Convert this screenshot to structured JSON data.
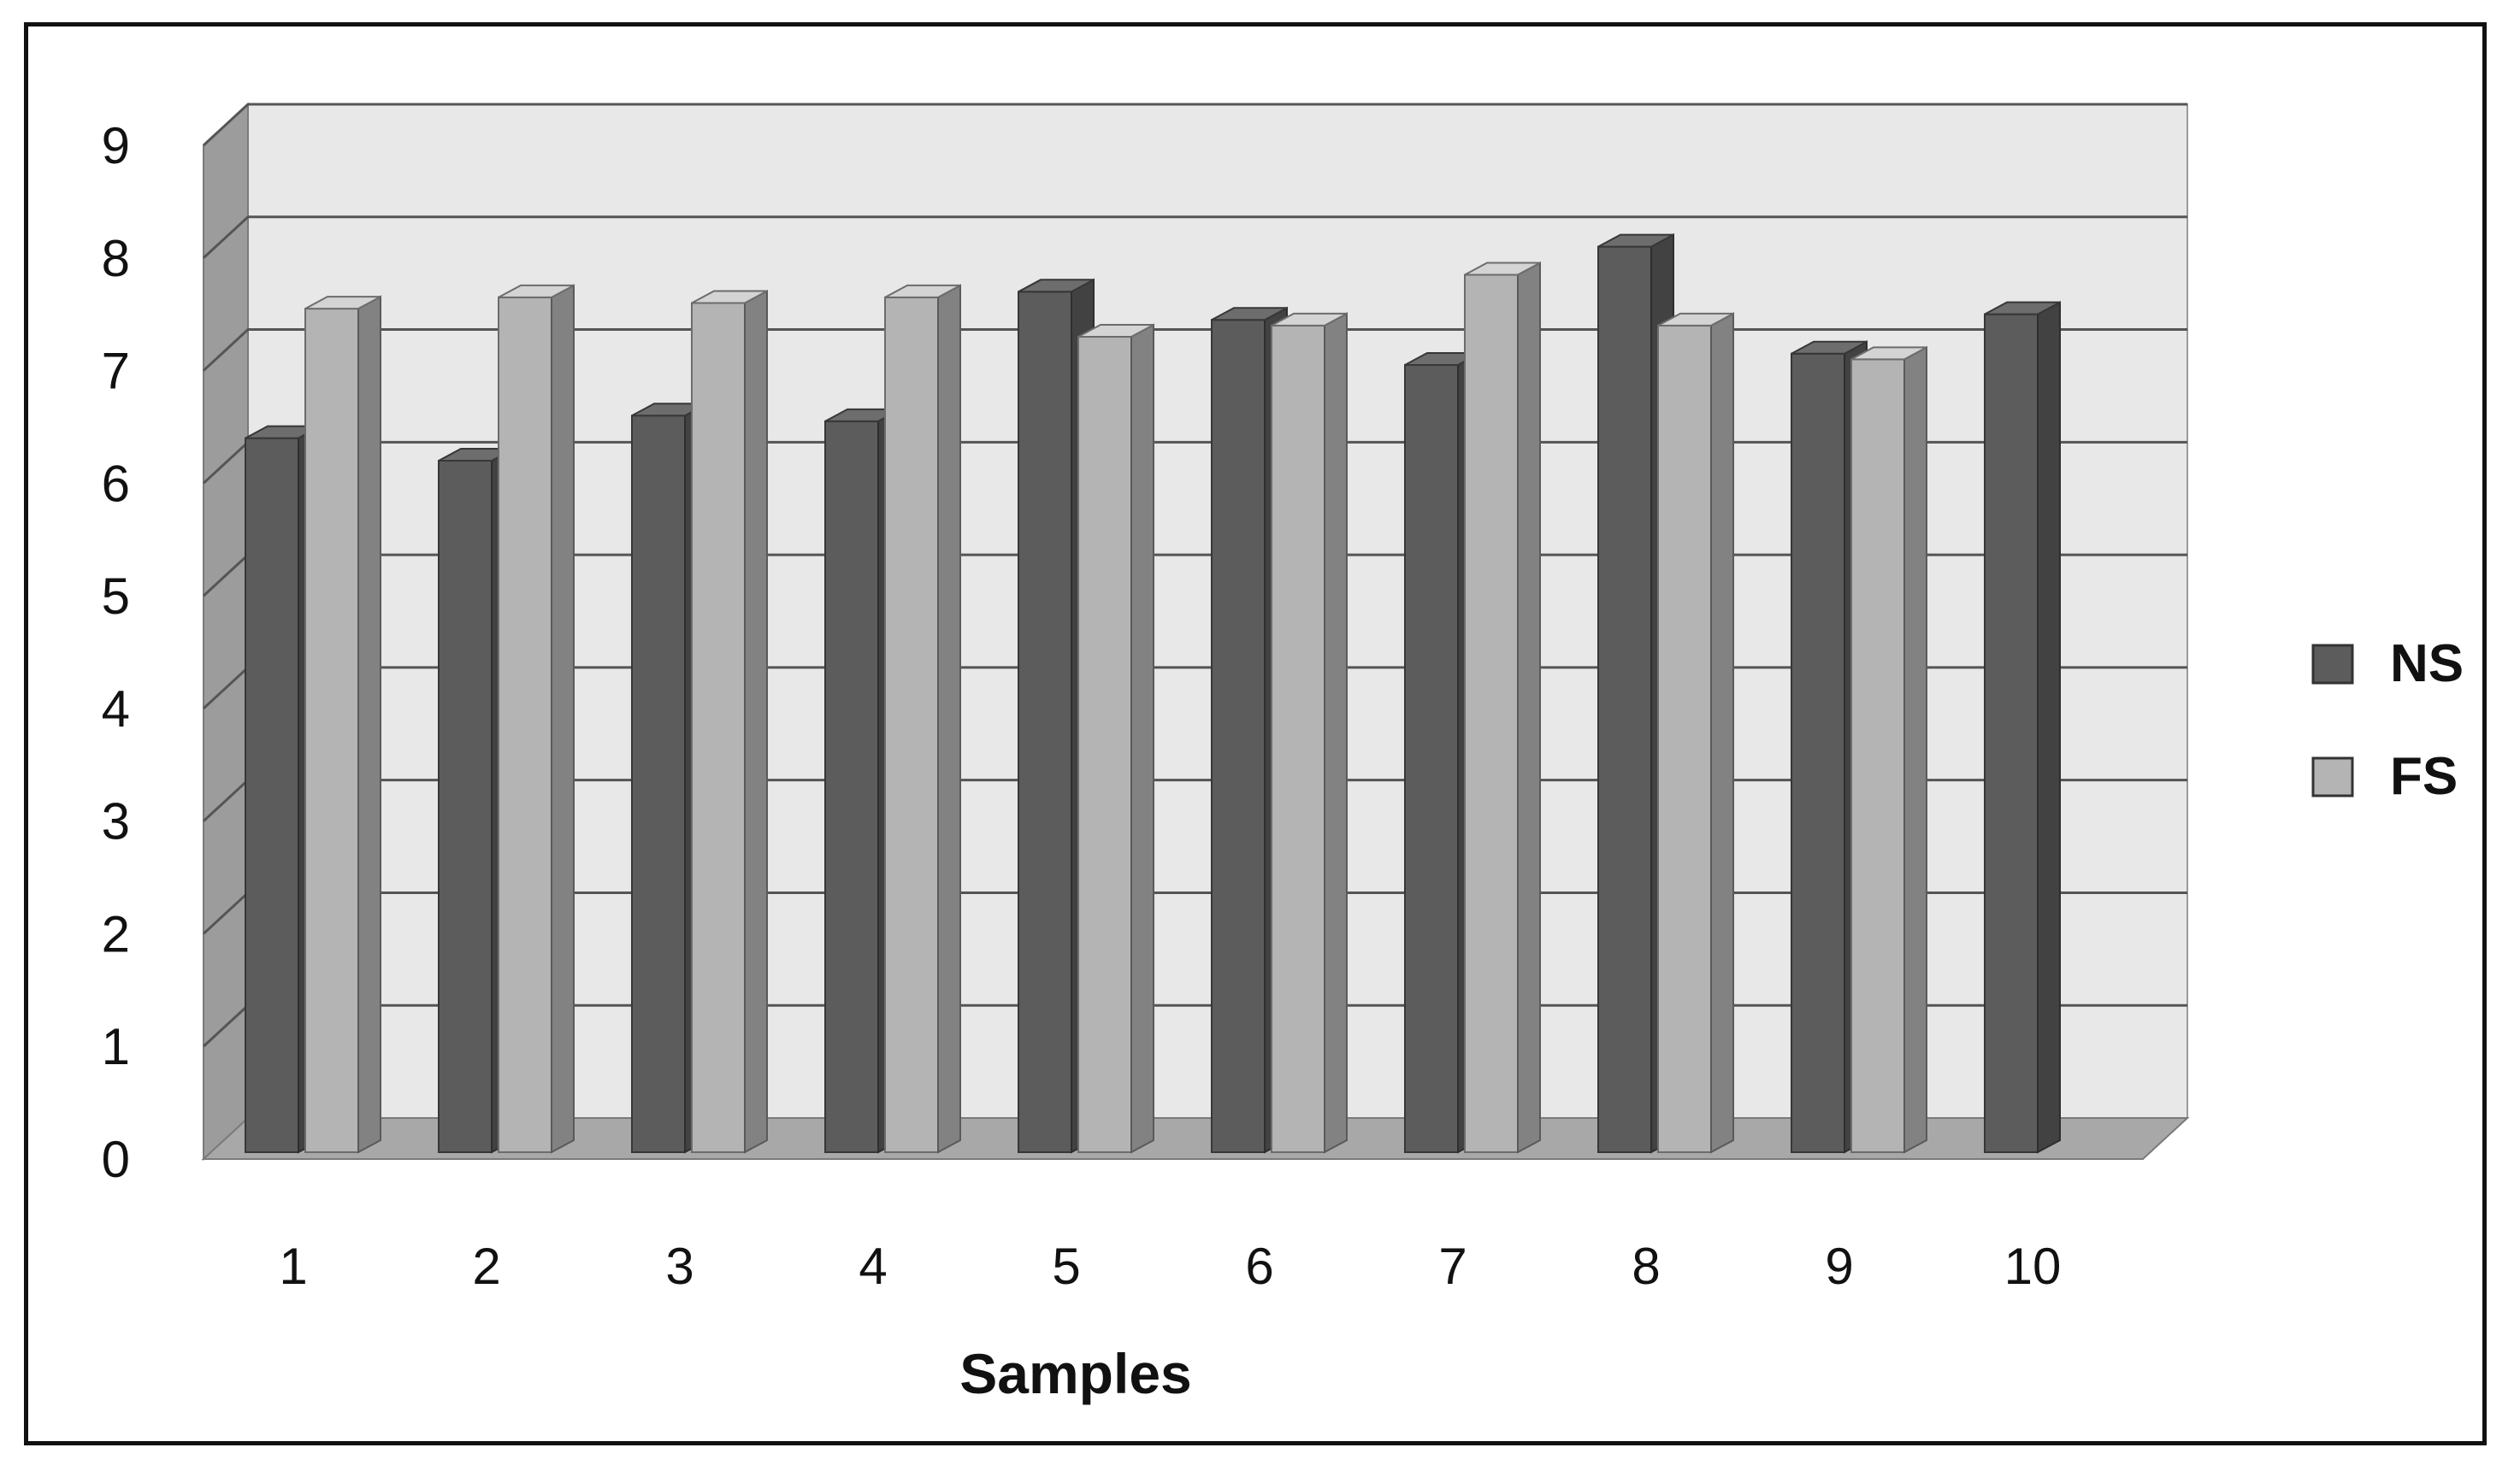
{
  "chart_data": {
    "type": "bar",
    "title": "",
    "xlabel": "Samples",
    "ylabel": "",
    "ylim": [
      0,
      9
    ],
    "yticks": [
      "0",
      "1",
      "2",
      "3",
      "4",
      "5",
      "6",
      "7",
      "8",
      "9"
    ],
    "categories": [
      "1",
      "2",
      "3",
      "4",
      "5",
      "6",
      "7",
      "8",
      "9",
      "10"
    ],
    "grid": true,
    "legend_position": "right",
    "series": [
      {
        "name": "NS",
        "color": "#5c5c5c",
        "values": [
          6.4,
          6.2,
          6.6,
          6.55,
          7.7,
          7.45,
          7.05,
          8.1,
          7.15,
          7.5
        ]
      },
      {
        "name": "FS",
        "color": "#b4b4b4",
        "values": [
          7.55,
          7.65,
          7.6,
          7.65,
          7.3,
          7.4,
          7.85,
          7.4,
          7.1,
          null
        ]
      }
    ]
  }
}
